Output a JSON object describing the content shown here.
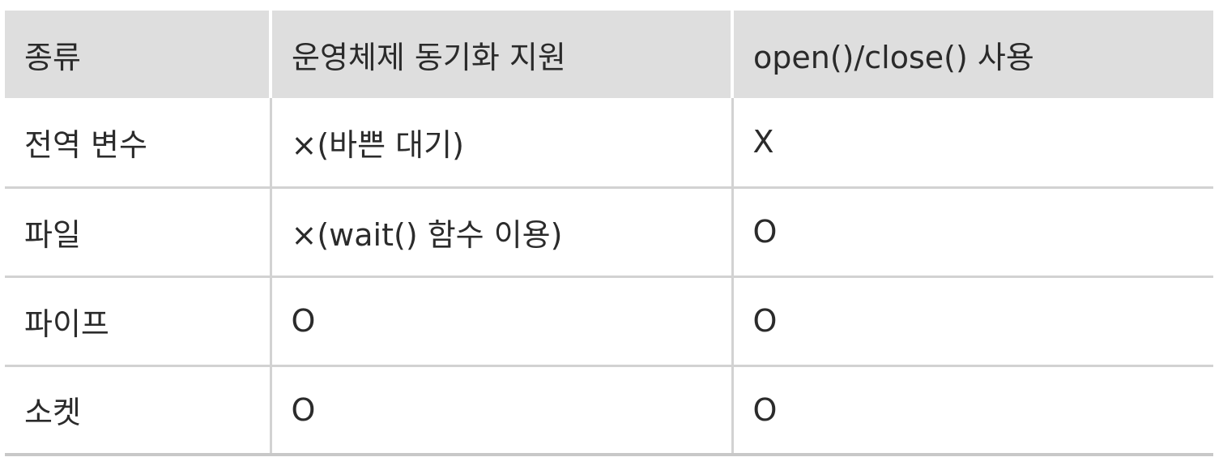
{
  "table": {
    "headers": [
      "종류",
      "운영체제 동기화 지원",
      "open()/close() 사용"
    ],
    "rows": [
      [
        "전역 변수",
        "×(바쁜 대기)",
        "X"
      ],
      [
        "파일",
        "×(wait() 함수 이용)",
        "O"
      ],
      [
        "파이프",
        "O",
        "O"
      ],
      [
        "소켓",
        "O",
        "O"
      ]
    ]
  }
}
